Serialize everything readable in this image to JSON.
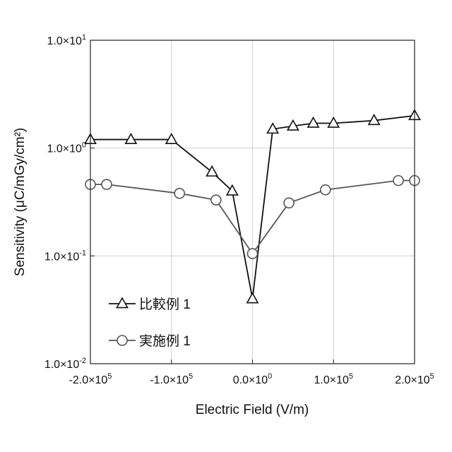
{
  "chart_data": {
    "type": "line",
    "xlabel": "Electric Field (V/m)",
    "ylabel": "Sensitivity (μC/mGy/cm²)",
    "xlim": [
      -200000,
      200000
    ],
    "ylim": [
      0.01,
      10
    ],
    "y_scale": "log",
    "grid": true,
    "x_ticks": [
      {
        "value": -200000,
        "label": "-2.0×10",
        "exp": "5"
      },
      {
        "value": -100000,
        "label": "-1.0×10",
        "exp": "5"
      },
      {
        "value": 0,
        "label": "0.0×10",
        "exp": "0"
      },
      {
        "value": 100000,
        "label": "1.0×10",
        "exp": "5"
      },
      {
        "value": 200000,
        "label": "2.0×10",
        "exp": "5"
      }
    ],
    "y_ticks": [
      {
        "value": 10,
        "label": "1.0×10",
        "exp": "1"
      },
      {
        "value": 1,
        "label": "1.0×10",
        "exp": "0"
      },
      {
        "value": 0.1,
        "label": "1.0×10",
        "exp": "-1"
      },
      {
        "value": 0.01,
        "label": "1.0×10",
        "exp": "-2"
      }
    ],
    "legend_position": "bottom-left",
    "series": [
      {
        "name": "比較例 1",
        "marker": "triangle",
        "color": "#111111",
        "x": [
          -200000,
          -150000,
          -100000,
          -50000,
          -25000,
          0,
          25000,
          50000,
          75000,
          100000,
          150000,
          200000
        ],
        "y": [
          1.2,
          1.2,
          1.2,
          0.6,
          0.4,
          0.04,
          1.5,
          1.6,
          1.7,
          1.7,
          1.8,
          2.0
        ]
      },
      {
        "name": "実施例 1",
        "marker": "circle",
        "color": "#555555",
        "x": [
          -200000,
          -180000,
          -90000,
          -45000,
          0,
          45000,
          90000,
          180000,
          200000
        ],
        "y": [
          0.46,
          0.46,
          0.38,
          0.33,
          0.105,
          0.31,
          0.41,
          0.5,
          0.5
        ]
      }
    ]
  }
}
